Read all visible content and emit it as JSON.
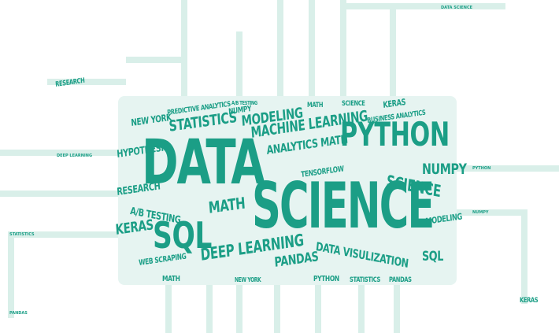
{
  "colors": {
    "accent": "#1b9e86",
    "trace": "#d9efe9",
    "chip": "#e6f4f1"
  },
  "words": {
    "data": "DATA",
    "science": "SCIENCE",
    "python": "PYTHON",
    "sql": "SQL",
    "sql2": "SQL",
    "statistics": "STATISTICS",
    "machine_learning": "MACHINE LEARNING",
    "modeling": "MODELING",
    "analytics_math": "ANALYTICS MATH",
    "numpy": "NUMPY",
    "science2": "SCIENCE",
    "math": "MATH",
    "deep_learning": "DEEP LEARNING",
    "pandas": "PANDAS",
    "data_visualization": "DATA VISULIZATION",
    "keras": "KERAS",
    "ab_testing": "A/B TESTING",
    "research": "RESEARCH",
    "hypothesis": "HYPOTHESIS",
    "new_york": "NEW YORK",
    "tensorflow": "TENSORFLOW",
    "web_scraping": "WEB SCRAPING",
    "predictive_analytics": "PREDICTIVE ANALYTICS",
    "business_analytics": "BUSINESS ANALYTICS",
    "modeling2": "MODELING",
    "keras2": "KERAS",
    "numpy2": "NUMPY",
    "pandas2": "PANDAS",
    "math2": "MATH",
    "statistics2": "STATISTICS",
    "python2": "PYTHON",
    "research2": "RESEARCH",
    "keras3": "KERAS",
    "science3": "SCIENCE",
    "math3": "MATH",
    "ab_testing2": "A/B TESTING",
    "new_york2": "NEW YORK",
    "data_science": "DATA SCIENCE",
    "deep_learning2": "DEEP LEARNING",
    "statistics3": "STATISTICS",
    "python3": "PYTHON",
    "numpy3": "NUMPY",
    "pandas3": "PANDAS"
  }
}
